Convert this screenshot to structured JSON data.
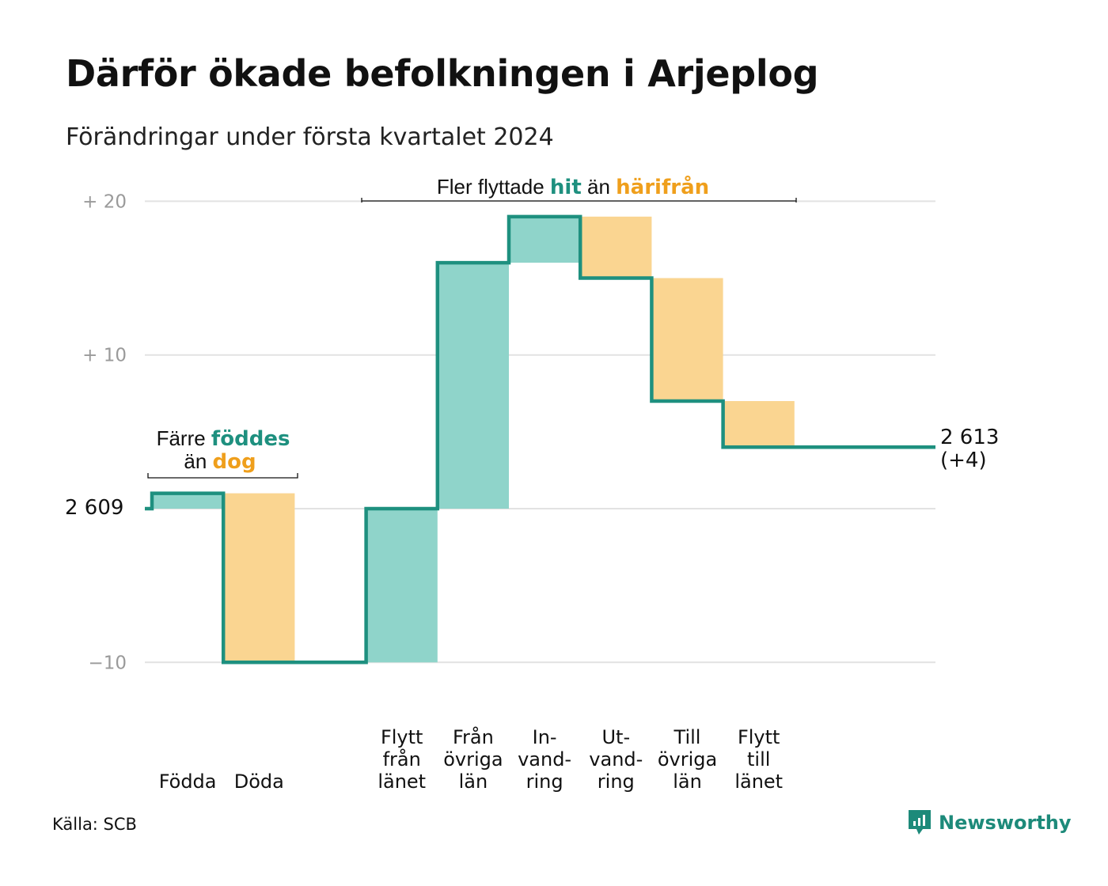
{
  "title": "Därför ökade befolkningen i Arjeplog",
  "subtitle": "Förändringar under första kvartalet 2024",
  "source": "Källa: SCB",
  "brand": "Newsworthy",
  "colors": {
    "increase": "#8fd4ca",
    "decrease": "#fad591",
    "line": "#1e907f",
    "grid": "#e2e2e2",
    "tick": "#9a9a9a",
    "teal_text": "#1e907f",
    "orange_text": "#ef9f1c"
  },
  "annotations": {
    "births_deaths": {
      "prefix": "Färre",
      "green": "föddes",
      "line2_prefix": "än",
      "orange": "dog"
    },
    "migration": {
      "prefix": "Fler flyttade",
      "green": "hit",
      "middle": "än",
      "orange": "härifrån"
    }
  },
  "end_label": {
    "value": "2 613",
    "change": "(+4)"
  },
  "chart_data": {
    "type": "waterfall",
    "title": "Därför ökade befolkningen i Arjeplog",
    "subtitle": "Förändringar under första kvartalet 2024",
    "start_value": 2609,
    "start_label": "2  609",
    "end_value": 2613,
    "y_ticks": [
      {
        "value": 20,
        "label": "+  20"
      },
      {
        "value": 10,
        "label": "+  10"
      },
      {
        "value": -10,
        "label": "−10"
      }
    ],
    "ylim": [
      -10,
      20
    ],
    "steps": [
      {
        "label_lines": [
          "Födda"
        ],
        "change": 1
      },
      {
        "label_lines": [
          "Döda"
        ],
        "change": -11
      },
      {
        "label_lines": [
          ""
        ],
        "change": 0
      },
      {
        "label_lines": [
          "Flytt",
          "från",
          "länet"
        ],
        "change": 10
      },
      {
        "label_lines": [
          "Från",
          "övriga",
          "län"
        ],
        "change": 16
      },
      {
        "label_lines": [
          "In-",
          "vand-",
          "ring"
        ],
        "change": 3
      },
      {
        "label_lines": [
          "Ut-",
          "vand-",
          "ring"
        ],
        "change": -4
      },
      {
        "label_lines": [
          "Till",
          "övriga",
          "län"
        ],
        "change": -8
      },
      {
        "label_lines": [
          "Flytt",
          "till",
          "länet"
        ],
        "change": -3
      }
    ]
  }
}
